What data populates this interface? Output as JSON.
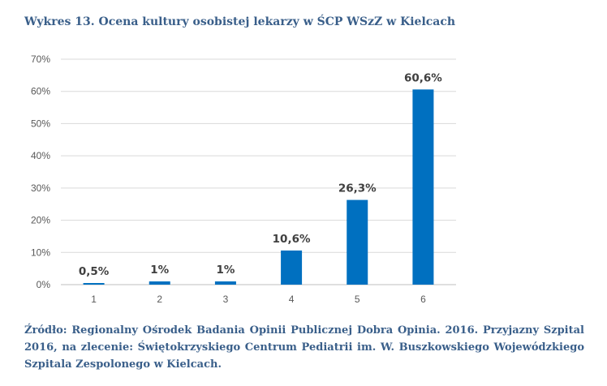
{
  "title": "Wykres 13. Ocena kultury osobistej lekarzy w ŚCP WSzZ w Kielcach",
  "source": "Źródło: Regionalny Ośrodek Badania Opinii Publicznej Dobra Opinia. 2016. Przyjazny Szpital 2016, na zlecenie: Świętokrzyskiego Centrum Pediatrii im. W. Buszkowskiego Wojewódzkiego Szpitala Zespolonego w Kielcach.",
  "chart_data": {
    "type": "bar",
    "categories": [
      "1",
      "2",
      "3",
      "4",
      "5",
      "6"
    ],
    "values": [
      0.5,
      1,
      1,
      10.6,
      26.3,
      60.6
    ],
    "data_labels": [
      "0,5%",
      "1%",
      "1%",
      "10,6%",
      "26,3%",
      "60,6%"
    ],
    "ylim": [
      0,
      70
    ],
    "yticks": [
      0,
      10,
      20,
      30,
      40,
      50,
      60,
      70
    ],
    "ytick_labels": [
      "0%",
      "10%",
      "20%",
      "30%",
      "40%",
      "50%",
      "60%",
      "70%"
    ],
    "grid": true,
    "legend": "none",
    "bar_color": "#0070c0",
    "grid_color": "#d9d9d9",
    "axis_color": "#bfbfbf"
  }
}
